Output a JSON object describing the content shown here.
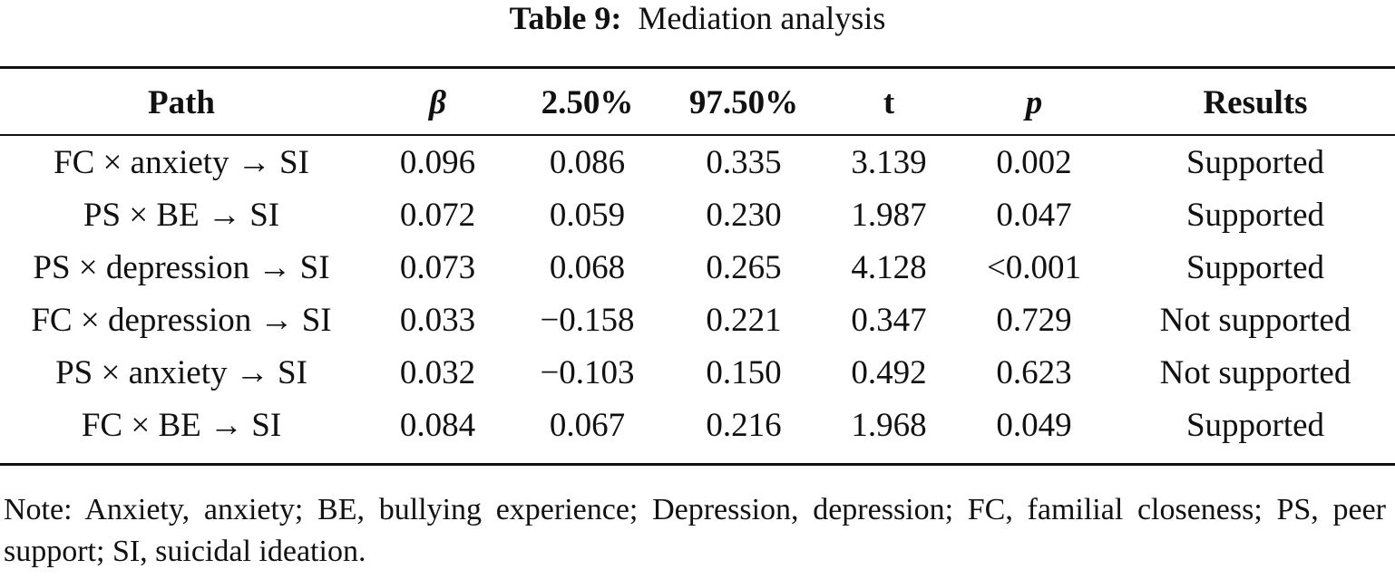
{
  "caption": {
    "label": "Table 9:",
    "title": "Mediation analysis"
  },
  "table": {
    "headers": [
      "Path",
      "β",
      "2.50%",
      "97.50%",
      "t",
      "p",
      "Results"
    ],
    "rows": [
      [
        "FC × anxiety → SI",
        "0.096",
        "0.086",
        "0.335",
        "3.139",
        "0.002",
        "Supported"
      ],
      [
        "PS × BE → SI",
        "0.072",
        "0.059",
        "0.230",
        "1.987",
        "0.047",
        "Supported"
      ],
      [
        "PS × depression → SI",
        "0.073",
        "0.068",
        "0.265",
        "4.128",
        "<0.001",
        "Supported"
      ],
      [
        "FC × depression → SI",
        "0.033",
        "−0.158",
        "0.221",
        "0.347",
        "0.729",
        "Not supported"
      ],
      [
        "PS × anxiety → SI",
        "0.032",
        "−0.103",
        "0.150",
        "0.492",
        "0.623",
        "Not supported"
      ],
      [
        "FC × BE → SI",
        "0.084",
        "0.067",
        "0.216",
        "1.968",
        "0.049",
        "Supported"
      ]
    ]
  },
  "note": "Note: Anxiety, anxiety; BE, bullying experience; Depression, depression; FC, familial close­ness; PS, peer support; SI, suicidal ideation."
}
